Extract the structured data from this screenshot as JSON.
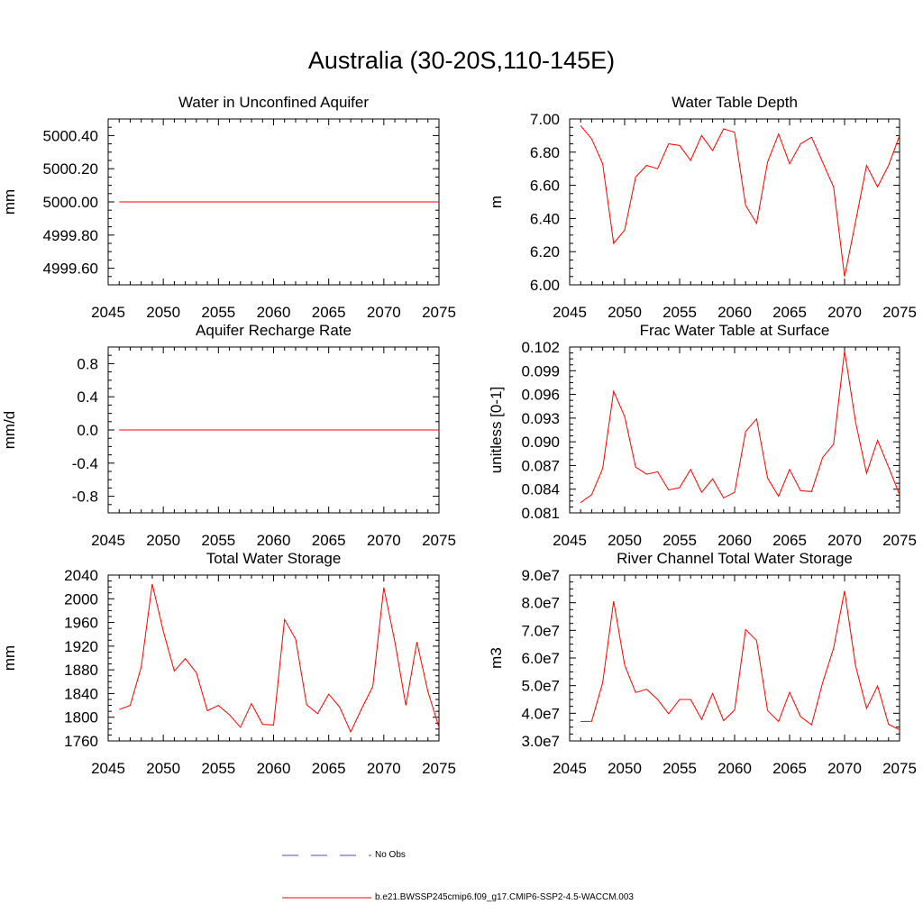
{
  "page": {
    "title": "Australia (30-20S,110-145E)"
  },
  "legend": {
    "entries": [
      {
        "label": "No Obs",
        "color": "#4b4bbf",
        "style": "dashed"
      },
      {
        "label": "b.e21.BWSSP245cmip6.f09_g17.CMIP6-SSP2-4.5-WACCM.003",
        "color": "#ff0000",
        "style": "solid"
      }
    ]
  },
  "chart_data": [
    {
      "type": "line",
      "title": "Water in Unconfined Aquifer",
      "ylabel": "mm",
      "xlim": [
        2045,
        2075
      ],
      "ylim": [
        4999.5,
        5000.5
      ],
      "xticks": [
        2045,
        2050,
        2055,
        2060,
        2065,
        2070,
        2075
      ],
      "xtick_labels": [
        "2045",
        "2050",
        "2055",
        "2060",
        "2065",
        "2070",
        "2075"
      ],
      "yticks": [
        4999.6,
        4999.8,
        5000.0,
        5000.2,
        5000.4
      ],
      "ytick_labels": [
        "4999.60",
        "4999.80",
        "5000.00",
        "5000.20",
        "5000.40"
      ],
      "color": "#ff0000",
      "x": [
        2046,
        2047,
        2048,
        2049,
        2050,
        2051,
        2052,
        2053,
        2054,
        2055,
        2056,
        2057,
        2058,
        2059,
        2060,
        2061,
        2062,
        2063,
        2064,
        2065,
        2066,
        2067,
        2068,
        2069,
        2070,
        2071,
        2072,
        2073,
        2074,
        2075
      ],
      "y": [
        5000,
        5000,
        5000,
        5000,
        5000,
        5000,
        5000,
        5000,
        5000,
        5000,
        5000,
        5000,
        5000,
        5000,
        5000,
        5000,
        5000,
        5000,
        5000,
        5000,
        5000,
        5000,
        5000,
        5000,
        5000,
        5000,
        5000,
        5000,
        5000,
        5000
      ]
    },
    {
      "type": "line",
      "title": "Water Table Depth",
      "ylabel": "m",
      "xlim": [
        2045,
        2075
      ],
      "ylim": [
        6.0,
        7.0
      ],
      "xticks": [
        2045,
        2050,
        2055,
        2060,
        2065,
        2070,
        2075
      ],
      "xtick_labels": [
        "2045",
        "2050",
        "2055",
        "2060",
        "2065",
        "2070",
        "2075"
      ],
      "yticks": [
        6.0,
        6.2,
        6.4,
        6.6,
        6.8,
        7.0
      ],
      "ytick_labels": [
        "6.00",
        "6.20",
        "6.40",
        "6.60",
        "6.80",
        "7.00"
      ],
      "color": "#ff0000",
      "x": [
        2046,
        2047,
        2048,
        2049,
        2050,
        2051,
        2052,
        2053,
        2054,
        2055,
        2056,
        2057,
        2058,
        2059,
        2060,
        2061,
        2062,
        2063,
        2064,
        2065,
        2066,
        2067,
        2068,
        2069,
        2070,
        2071,
        2072,
        2073,
        2074,
        2075
      ],
      "y": [
        6.96,
        6.88,
        6.73,
        6.25,
        6.33,
        6.65,
        6.72,
        6.7,
        6.85,
        6.84,
        6.75,
        6.9,
        6.81,
        6.94,
        6.92,
        6.48,
        6.37,
        6.74,
        6.91,
        6.73,
        6.85,
        6.89,
        6.74,
        6.59,
        6.05,
        6.38,
        6.72,
        6.59,
        6.72,
        6.9
      ]
    },
    {
      "type": "line",
      "title": "Aquifer Recharge Rate",
      "ylabel": "mm/d",
      "xlim": [
        2045,
        2075
      ],
      "ylim": [
        -1.0,
        1.0
      ],
      "xticks": [
        2045,
        2050,
        2055,
        2060,
        2065,
        2070,
        2075
      ],
      "xtick_labels": [
        "2045",
        "2050",
        "2055",
        "2060",
        "2065",
        "2070",
        "2075"
      ],
      "yticks": [
        -0.8,
        -0.4,
        0.0,
        0.4,
        0.8
      ],
      "ytick_labels": [
        "-0.8",
        "-0.4",
        "0.0",
        "0.4",
        "0.8"
      ],
      "color": "#ff0000",
      "x": [
        2046,
        2047,
        2048,
        2049,
        2050,
        2051,
        2052,
        2053,
        2054,
        2055,
        2056,
        2057,
        2058,
        2059,
        2060,
        2061,
        2062,
        2063,
        2064,
        2065,
        2066,
        2067,
        2068,
        2069,
        2070,
        2071,
        2072,
        2073,
        2074,
        2075
      ],
      "y": [
        0,
        0,
        0,
        0,
        0,
        0,
        0,
        0,
        0,
        0,
        0,
        0,
        0,
        0,
        0,
        0,
        0,
        0,
        0,
        0,
        0,
        0,
        0,
        0,
        0,
        0,
        0,
        0,
        0,
        0
      ]
    },
    {
      "type": "line",
      "title": "Frac Water Table at Surface",
      "ylabel": "unitless [0-1]",
      "xlim": [
        2045,
        2075
      ],
      "ylim": [
        0.081,
        0.102
      ],
      "xticks": [
        2045,
        2050,
        2055,
        2060,
        2065,
        2070,
        2075
      ],
      "xtick_labels": [
        "2045",
        "2050",
        "2055",
        "2060",
        "2065",
        "2070",
        "2075"
      ],
      "yticks": [
        0.081,
        0.084,
        0.087,
        0.09,
        0.093,
        0.096,
        0.099,
        0.102
      ],
      "ytick_labels": [
        "0.081",
        "0.084",
        "0.087",
        "0.090",
        "0.093",
        "0.096",
        "0.099",
        "0.102"
      ],
      "color": "#ff0000",
      "x": [
        2046,
        2047,
        2048,
        2049,
        2050,
        2051,
        2052,
        2053,
        2054,
        2055,
        2056,
        2057,
        2058,
        2059,
        2060,
        2061,
        2062,
        2063,
        2064,
        2065,
        2066,
        2067,
        2068,
        2069,
        2070,
        2071,
        2072,
        2073,
        2074,
        2075
      ],
      "y": [
        0.0823,
        0.0833,
        0.0866,
        0.0964,
        0.0932,
        0.0868,
        0.0859,
        0.0862,
        0.0839,
        0.0842,
        0.0865,
        0.0836,
        0.0853,
        0.0829,
        0.0836,
        0.0913,
        0.0929,
        0.0854,
        0.0831,
        0.0865,
        0.0838,
        0.0837,
        0.088,
        0.0897,
        0.1015,
        0.0925,
        0.086,
        0.0902,
        0.0868,
        0.0833
      ]
    },
    {
      "type": "line",
      "title": "Total Water Storage",
      "ylabel": "mm",
      "xlim": [
        2045,
        2075
      ],
      "ylim": [
        1760,
        2040
      ],
      "xticks": [
        2045,
        2050,
        2055,
        2060,
        2065,
        2070,
        2075
      ],
      "xtick_labels": [
        "2045",
        "2050",
        "2055",
        "2060",
        "2065",
        "2070",
        "2075"
      ],
      "yticks": [
        1760,
        1800,
        1840,
        1880,
        1920,
        1960,
        2000,
        2040
      ],
      "ytick_labels": [
        "1760",
        "1800",
        "1840",
        "1880",
        "1920",
        "1960",
        "2000",
        "2040"
      ],
      "color": "#ff0000",
      "x": [
        2046,
        2047,
        2048,
        2049,
        2050,
        2051,
        2052,
        2053,
        2054,
        2055,
        2056,
        2057,
        2058,
        2059,
        2060,
        2061,
        2062,
        2063,
        2064,
        2065,
        2066,
        2067,
        2068,
        2069,
        2070,
        2071,
        2072,
        2073,
        2074,
        2075
      ],
      "y": [
        1813,
        1820,
        1885,
        2025,
        1945,
        1878,
        1899,
        1875,
        1811,
        1820,
        1804,
        1783,
        1823,
        1788,
        1787,
        1965,
        1932,
        1821,
        1806,
        1839,
        1817,
        1775,
        1815,
        1852,
        2019,
        1927,
        1820,
        1927,
        1843,
        1783
      ]
    },
    {
      "type": "line",
      "title": "River Channel Total Water Storage",
      "ylabel": "m3",
      "xlim": [
        2045,
        2075
      ],
      "ylim": [
        30000000,
        90000000
      ],
      "xticks": [
        2045,
        2050,
        2055,
        2060,
        2065,
        2070,
        2075
      ],
      "xtick_labels": [
        "2045",
        "2050",
        "2055",
        "2060",
        "2065",
        "2070",
        "2075"
      ],
      "yticks": [
        30000000,
        40000000,
        50000000,
        60000000,
        70000000,
        80000000,
        90000000
      ],
      "ytick_labels": [
        "3.0e7",
        "4.0e7",
        "5.0e7",
        "6.0e7",
        "7.0e7",
        "8.0e7",
        "9.0e7"
      ],
      "color": "#ff0000",
      "x": [
        2046,
        2047,
        2048,
        2049,
        2050,
        2051,
        2052,
        2053,
        2054,
        2055,
        2056,
        2057,
        2058,
        2059,
        2060,
        2061,
        2062,
        2063,
        2064,
        2065,
        2066,
        2067,
        2068,
        2069,
        2070,
        2071,
        2072,
        2073,
        2074,
        2075
      ],
      "y": [
        37000000,
        37100000,
        51000000,
        80500000,
        57500000,
        47500000,
        48700000,
        45000000,
        39800000,
        45000000,
        45000000,
        37800000,
        47200000,
        37300000,
        41200000,
        70300000,
        66300000,
        41000000,
        37000000,
        47600000,
        38800000,
        35800000,
        51000000,
        63500000,
        84300000,
        57200000,
        41700000,
        49900000,
        36000000,
        34000000
      ]
    }
  ]
}
